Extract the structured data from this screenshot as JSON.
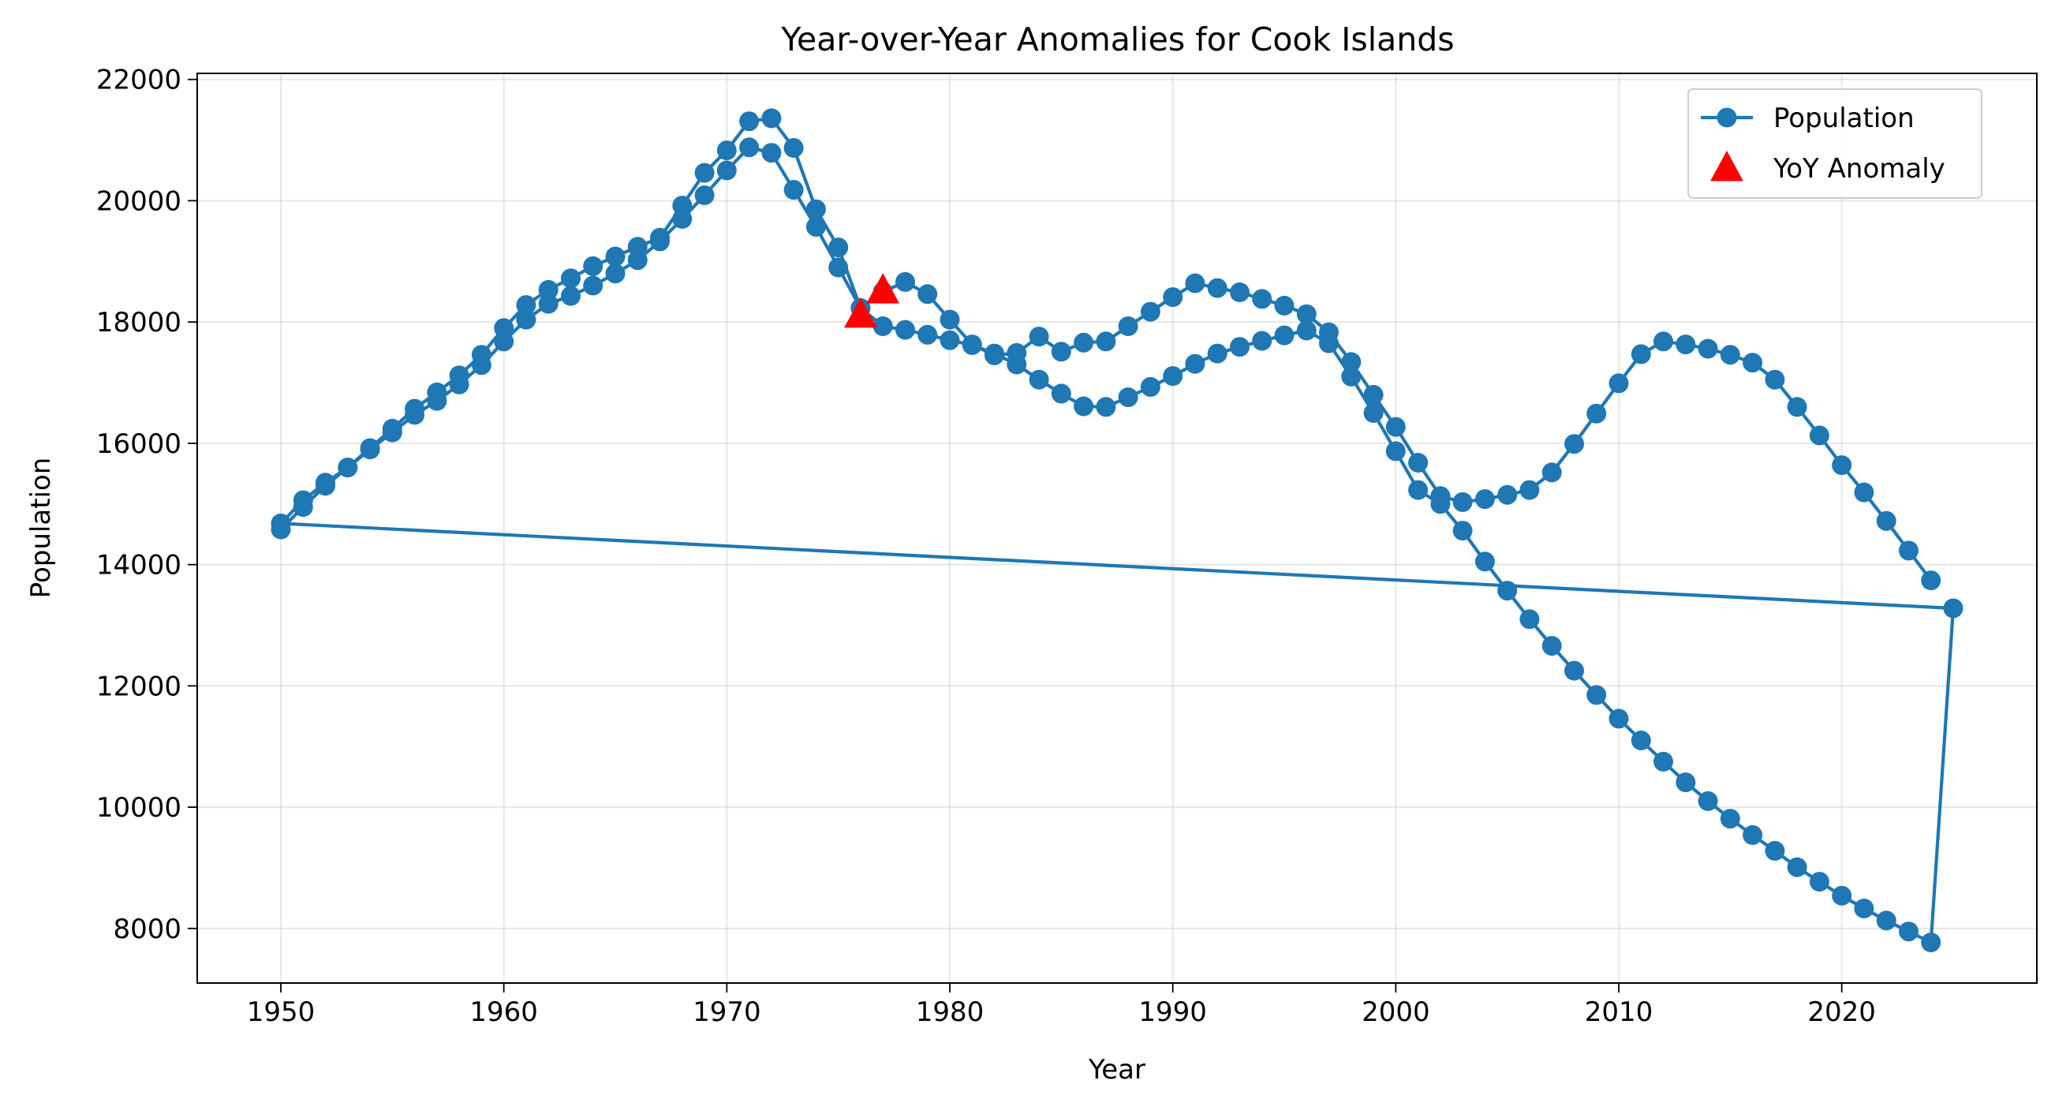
{
  "chart_data": {
    "type": "line",
    "title": "Year-over-Year Anomalies for Cook Islands",
    "xlabel": "Year",
    "ylabel": "Population",
    "xlim": [
      1946.25,
      2028.75
    ],
    "ylim": [
      7100,
      22100
    ],
    "xticks": [
      1950,
      1960,
      1970,
      1980,
      1990,
      2000,
      2010,
      2020
    ],
    "yticks": [
      8000,
      10000,
      12000,
      14000,
      16000,
      18000,
      20000,
      22000
    ],
    "grid": true,
    "legend": {
      "placement": "top-right"
    },
    "colors": {
      "line": "#1f77b4",
      "anomaly": "#ff0000"
    },
    "series": [
      {
        "name": "Population",
        "style": "line-marker",
        "x": [
          1950,
          1951,
          1952,
          1953,
          1954,
          1955,
          1956,
          1957,
          1958,
          1959,
          1960,
          1961,
          1962,
          1963,
          1964,
          1965,
          1966,
          1967,
          1968,
          1969,
          1970,
          1971,
          1972,
          1973,
          1974,
          1975,
          1976,
          1977,
          1978,
          1979,
          1980,
          1981,
          1982,
          1983,
          1984,
          1985,
          1986,
          1987,
          1988,
          1989,
          1990,
          1991,
          1992,
          1993,
          1994,
          1995,
          1996,
          1997,
          1998,
          1999,
          2000,
          2001,
          2002,
          2003,
          2004,
          2005,
          2006,
          2007,
          2008,
          2009,
          2010,
          2011,
          2012,
          2013,
          2014,
          2015,
          2016,
          2017,
          2018,
          2019,
          2020,
          2021,
          2022,
          2023,
          2024,
          2025,
          1950,
          1951,
          1952,
          1953,
          1954,
          1955,
          1956,
          1957,
          1958,
          1959,
          1960,
          1961,
          1962,
          1963,
          1964,
          1965,
          1966,
          1967,
          1968,
          1969,
          1970,
          1971,
          1972,
          1973,
          1974,
          1975,
          1976,
          1977,
          1978,
          1979,
          1980,
          1981,
          1982,
          1983,
          1984,
          1985,
          1986,
          1987,
          1988,
          1989,
          1990,
          1991,
          1992,
          1993,
          1994,
          1995,
          1996,
          1997,
          1998,
          1999,
          2000,
          2001,
          2002,
          2003,
          2004,
          2005,
          2006,
          2007,
          2008,
          2009,
          2010,
          2011,
          2012,
          2013,
          2014,
          2015,
          2016,
          2017,
          2018,
          2019,
          2020,
          2021,
          2022,
          2023,
          2024
        ],
        "y": [
          14580,
          14950,
          15300,
          15600,
          15900,
          16180,
          16470,
          16700,
          16970,
          17290,
          17680,
          18040,
          18300,
          18430,
          18600,
          18800,
          19020,
          19330,
          19700,
          20090,
          20500,
          20880,
          20790,
          20180,
          19570,
          18900,
          18230,
          17930,
          17870,
          17790,
          17700,
          17620,
          17480,
          17300,
          17050,
          16820,
          16610,
          16600,
          16760,
          16930,
          17110,
          17310,
          17480,
          17590,
          17690,
          17780,
          17860,
          17650,
          17100,
          16500,
          15870,
          15230,
          15000,
          14560,
          14050,
          13570,
          13100,
          12660,
          12250,
          11850,
          11460,
          11100,
          10750,
          10410,
          10100,
          9810,
          9540,
          9280,
          9010,
          8770,
          8540,
          8330,
          8130,
          7950,
          7770,
          13280,
          14680,
          15060,
          15350,
          15600,
          15920,
          16240,
          16570,
          16840,
          17120,
          17460,
          17900,
          18280,
          18530,
          18720,
          18920,
          19080,
          19240,
          19390,
          19920,
          20460,
          20830,
          21310,
          21360,
          20870,
          19860,
          19230,
          18230,
          18500,
          18660,
          18460,
          18040,
          17630,
          17450,
          17490,
          17760,
          17510,
          17660,
          17680,
          17930,
          18170,
          18410,
          18640,
          18560,
          18490,
          18380,
          18270,
          18130,
          17830,
          17340,
          16800,
          16270,
          15680,
          15130,
          15030,
          15080,
          15150,
          15230,
          15520,
          15990,
          16490,
          16990,
          17470,
          17680,
          17630,
          17560,
          17460,
          17330,
          17050,
          16600,
          16130,
          15640,
          15190,
          14720,
          14230,
          13740
        ]
      },
      {
        "name": "YoY Anomaly",
        "style": "marker-only",
        "marker": "triangle",
        "x": [
          1976,
          1977
        ],
        "y": [
          18120,
          18520
        ]
      }
    ]
  }
}
